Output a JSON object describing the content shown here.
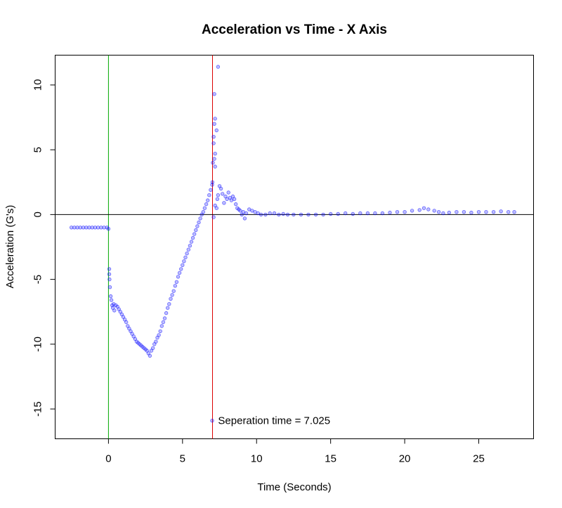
{
  "chart_data": {
    "type": "scatter",
    "title": "Acceleration vs Time -  X Axis",
    "xlabel": "Time (Seconds)",
    "ylabel": "Acceleration (G's)",
    "xlim": [
      -3.6,
      28.7
    ],
    "ylim": [
      -17.3,
      12.3
    ],
    "xticks": [
      0,
      5,
      10,
      15,
      20,
      25
    ],
    "yticks": [
      -15,
      -10,
      -5,
      0,
      5,
      10
    ],
    "xtick_labels": [
      "0",
      "5",
      "10",
      "15",
      "20",
      "25"
    ],
    "ytick_labels": [
      "-15",
      "-10",
      "-5",
      "0",
      "5",
      "10"
    ],
    "grid": false,
    "legend": "none",
    "colors": {
      "points": "#0000ff",
      "start_line": "#00aa00",
      "separation_line": "#dd0000",
      "zero_line": "#000000"
    },
    "reference_lines": [
      {
        "orientation": "vertical",
        "x": 0,
        "color": "#00aa00"
      },
      {
        "orientation": "vertical",
        "x": 7.025,
        "color": "#dd0000"
      },
      {
        "orientation": "horizontal",
        "y": 0,
        "color": "#000000"
      }
    ],
    "annotation": {
      "text": "Seperation time = 7.025",
      "x": 7.4,
      "y": -15.9
    },
    "series": [
      {
        "points": [
          [
            -2.5,
            -1.0
          ],
          [
            -2.3,
            -1.0
          ],
          [
            -2.1,
            -1.0
          ],
          [
            -1.9,
            -1.0
          ],
          [
            -1.7,
            -1.0
          ],
          [
            -1.5,
            -1.0
          ],
          [
            -1.3,
            -1.0
          ],
          [
            -1.1,
            -1.0
          ],
          [
            -0.9,
            -1.0
          ],
          [
            -0.7,
            -1.0
          ],
          [
            -0.5,
            -1.0
          ],
          [
            -0.3,
            -1.0
          ],
          [
            -0.1,
            -1.0
          ],
          [
            0.0,
            -1.1
          ],
          [
            0.05,
            -4.2
          ],
          [
            0.05,
            -4.6
          ],
          [
            0.07,
            -5.0
          ],
          [
            0.1,
            -5.6
          ],
          [
            0.15,
            -6.3
          ],
          [
            0.2,
            -6.6
          ],
          [
            0.25,
            -7.0
          ],
          [
            0.3,
            -7.2
          ],
          [
            0.35,
            -6.9
          ],
          [
            0.4,
            -7.4
          ],
          [
            0.5,
            -7.0
          ],
          [
            0.6,
            -7.1
          ],
          [
            0.7,
            -7.3
          ],
          [
            0.8,
            -7.5
          ],
          [
            0.9,
            -7.7
          ],
          [
            1.0,
            -7.9
          ],
          [
            1.1,
            -8.1
          ],
          [
            1.2,
            -8.3
          ],
          [
            1.3,
            -8.6
          ],
          [
            1.4,
            -8.8
          ],
          [
            1.5,
            -9.0
          ],
          [
            1.6,
            -9.2
          ],
          [
            1.7,
            -9.4
          ],
          [
            1.8,
            -9.6
          ],
          [
            1.9,
            -9.8
          ],
          [
            2.0,
            -9.9
          ],
          [
            2.1,
            -10.0
          ],
          [
            2.2,
            -10.1
          ],
          [
            2.3,
            -10.2
          ],
          [
            2.4,
            -10.3
          ],
          [
            2.5,
            -10.4
          ],
          [
            2.6,
            -10.5
          ],
          [
            2.7,
            -10.7
          ],
          [
            2.8,
            -10.9
          ],
          [
            2.9,
            -10.5
          ],
          [
            3.0,
            -10.3
          ],
          [
            3.1,
            -10.0
          ],
          [
            3.2,
            -9.8
          ],
          [
            3.3,
            -9.5
          ],
          [
            3.4,
            -9.3
          ],
          [
            3.5,
            -9.0
          ],
          [
            3.6,
            -8.6
          ],
          [
            3.7,
            -8.3
          ],
          [
            3.8,
            -8.0
          ],
          [
            3.9,
            -7.6
          ],
          [
            4.0,
            -7.2
          ],
          [
            4.1,
            -6.9
          ],
          [
            4.2,
            -6.5
          ],
          [
            4.3,
            -6.2
          ],
          [
            4.4,
            -5.9
          ],
          [
            4.5,
            -5.5
          ],
          [
            4.6,
            -5.2
          ],
          [
            4.7,
            -4.8
          ],
          [
            4.8,
            -4.5
          ],
          [
            4.9,
            -4.2
          ],
          [
            5.0,
            -3.9
          ],
          [
            5.1,
            -3.6
          ],
          [
            5.2,
            -3.3
          ],
          [
            5.3,
            -3.0
          ],
          [
            5.4,
            -2.7
          ],
          [
            5.5,
            -2.4
          ],
          [
            5.6,
            -2.1
          ],
          [
            5.7,
            -1.8
          ],
          [
            5.8,
            -1.5
          ],
          [
            5.9,
            -1.2
          ],
          [
            6.0,
            -0.9
          ],
          [
            6.1,
            -0.6
          ],
          [
            6.2,
            -0.3
          ],
          [
            6.3,
            0.0
          ],
          [
            6.4,
            0.2
          ],
          [
            6.5,
            0.5
          ],
          [
            6.6,
            0.8
          ],
          [
            6.7,
            1.1
          ],
          [
            6.8,
            1.5
          ],
          [
            6.9,
            1.9
          ],
          [
            7.0,
            2.3
          ],
          [
            7.02,
            2.5
          ],
          [
            7.05,
            4.0
          ],
          [
            7.1,
            5.5
          ],
          [
            7.1,
            6.0
          ],
          [
            7.15,
            7.0
          ],
          [
            7.2,
            7.4
          ],
          [
            7.15,
            9.3
          ],
          [
            7.4,
            11.4
          ],
          [
            7.3,
            6.5
          ],
          [
            7.2,
            4.7
          ],
          [
            7.15,
            4.3
          ],
          [
            7.2,
            3.7
          ],
          [
            7.1,
            -0.2
          ],
          [
            7.2,
            0.7
          ],
          [
            7.3,
            0.5
          ],
          [
            7.35,
            1.2
          ],
          [
            7.4,
            1.5
          ],
          [
            7.5,
            2.2
          ],
          [
            7.6,
            2.0
          ],
          [
            7.7,
            1.6
          ],
          [
            7.8,
            0.9
          ],
          [
            7.9,
            1.4
          ],
          [
            8.0,
            1.2
          ],
          [
            8.1,
            1.7
          ],
          [
            8.2,
            1.3
          ],
          [
            8.3,
            1.1
          ],
          [
            8.4,
            1.4
          ],
          [
            8.5,
            1.2
          ],
          [
            8.6,
            0.8
          ],
          [
            8.7,
            0.5
          ],
          [
            8.8,
            0.4
          ],
          [
            8.9,
            0.3
          ],
          [
            9.0,
            0.0
          ],
          [
            9.1,
            0.2
          ],
          [
            9.2,
            -0.3
          ],
          [
            9.3,
            0.1
          ],
          [
            9.5,
            0.4
          ],
          [
            9.7,
            0.3
          ],
          [
            9.9,
            0.2
          ],
          [
            10.1,
            0.1
          ],
          [
            10.3,
            0.0
          ],
          [
            10.6,
            0.0
          ],
          [
            10.9,
            0.1
          ],
          [
            11.2,
            0.1
          ],
          [
            11.5,
            0.0
          ],
          [
            11.8,
            0.05
          ],
          [
            12.1,
            0.0
          ],
          [
            12.5,
            0.0
          ],
          [
            13.0,
            0.0
          ],
          [
            13.5,
            0.0
          ],
          [
            14.0,
            0.0
          ],
          [
            14.5,
            0.0
          ],
          [
            15.0,
            0.05
          ],
          [
            15.5,
            0.05
          ],
          [
            16.0,
            0.1
          ],
          [
            16.5,
            0.05
          ],
          [
            17.0,
            0.1
          ],
          [
            17.5,
            0.1
          ],
          [
            18.0,
            0.1
          ],
          [
            18.5,
            0.1
          ],
          [
            19.0,
            0.15
          ],
          [
            19.5,
            0.2
          ],
          [
            20.0,
            0.2
          ],
          [
            20.5,
            0.3
          ],
          [
            21.0,
            0.35
          ],
          [
            21.3,
            0.5
          ],
          [
            21.6,
            0.4
          ],
          [
            22.0,
            0.3
          ],
          [
            22.3,
            0.2
          ],
          [
            22.6,
            0.1
          ],
          [
            23.0,
            0.15
          ],
          [
            23.5,
            0.2
          ],
          [
            24.0,
            0.2
          ],
          [
            24.5,
            0.15
          ],
          [
            25.0,
            0.2
          ],
          [
            25.5,
            0.2
          ],
          [
            26.0,
            0.2
          ],
          [
            26.5,
            0.25
          ],
          [
            27.0,
            0.2
          ],
          [
            27.4,
            0.2
          ],
          [
            7.0,
            -15.9
          ]
        ]
      }
    ]
  }
}
